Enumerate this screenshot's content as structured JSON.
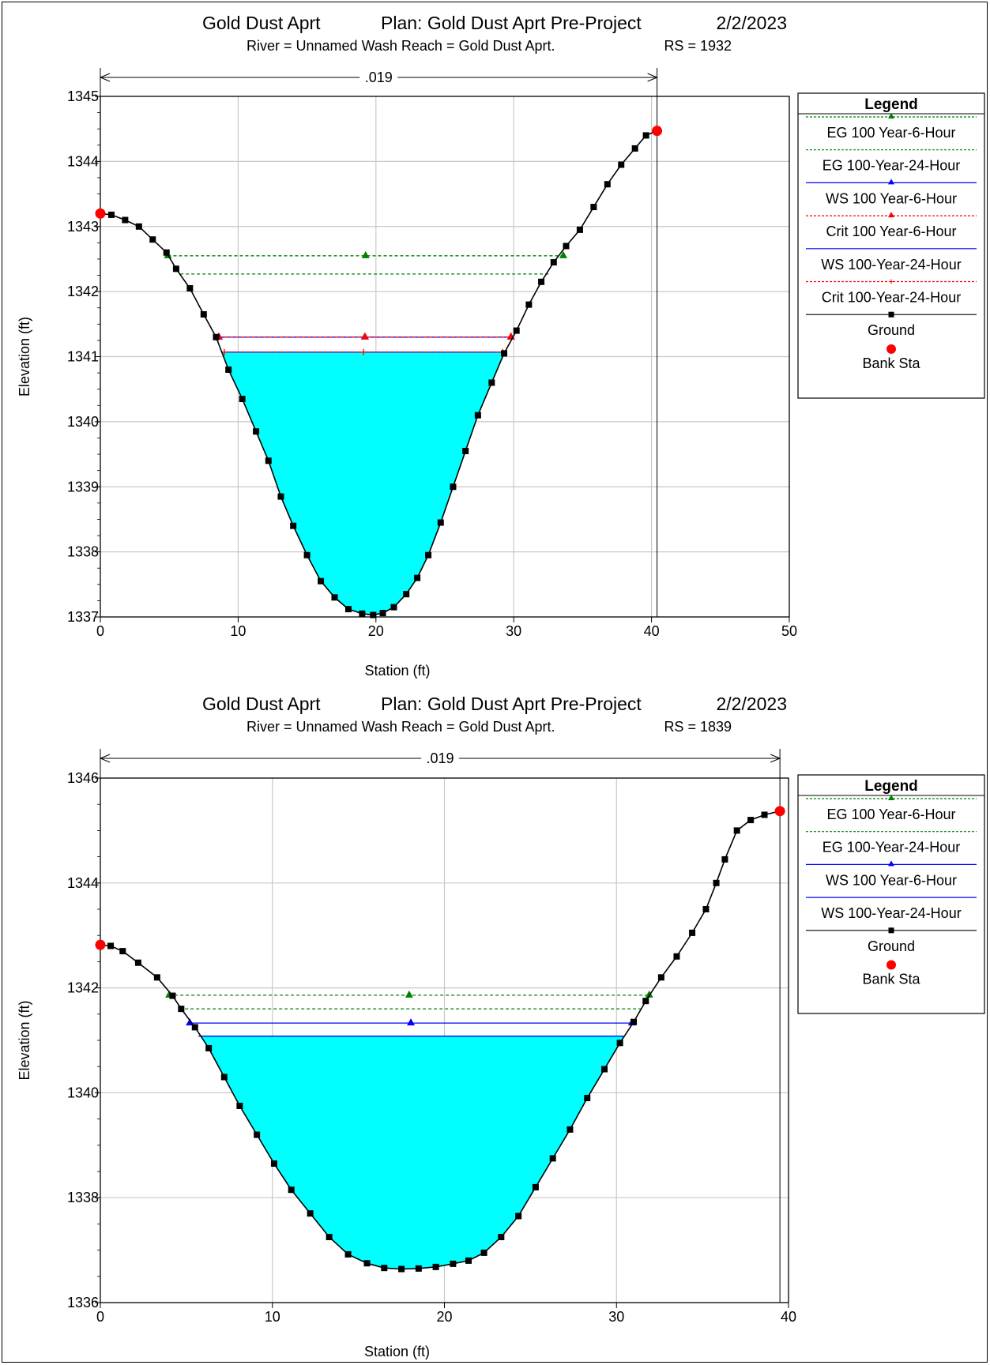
{
  "chart_data": [
    {
      "type": "line",
      "title": "Gold Dust Aprt",
      "plan": "Plan: Gold Dust Aprt Pre-Project",
      "date": "2/2/2023",
      "subtitle": "River = Unnamed Wash   Reach = Gold Dust Aprt.",
      "rs": "RS = 1932",
      "xlabel": "Station (ft)",
      "ylabel": "Elevation (ft)",
      "xlim": [
        0,
        50
      ],
      "ylim": [
        1337,
        1345
      ],
      "xticks": [
        0,
        10,
        20,
        30,
        40,
        50
      ],
      "yticks": [
        1337,
        1338,
        1339,
        1340,
        1341,
        1342,
        1343,
        1344,
        1345
      ],
      "grid": true,
      "mannings": {
        "label": ".019",
        "from": 0,
        "to": 40.4
      },
      "ground": [
        [
          0,
          1343.2
        ],
        [
          0.8,
          1343.18
        ],
        [
          1.8,
          1343.1
        ],
        [
          2.8,
          1343.0
        ],
        [
          3.8,
          1342.8
        ],
        [
          4.8,
          1342.6
        ],
        [
          5.5,
          1342.35
        ],
        [
          6.5,
          1342.05
        ],
        [
          7.5,
          1341.65
        ],
        [
          8.4,
          1341.3
        ],
        [
          9.3,
          1340.8
        ],
        [
          10.3,
          1340.35
        ],
        [
          11.3,
          1339.85
        ],
        [
          12.2,
          1339.4
        ],
        [
          13.1,
          1338.85
        ],
        [
          14.0,
          1338.4
        ],
        [
          15.0,
          1337.95
        ],
        [
          16.0,
          1337.55
        ],
        [
          17.0,
          1337.3
        ],
        [
          18.0,
          1337.12
        ],
        [
          19.0,
          1337.05
        ],
        [
          19.8,
          1337.03
        ],
        [
          20.5,
          1337.06
        ],
        [
          21.3,
          1337.15
        ],
        [
          22.2,
          1337.35
        ],
        [
          23.0,
          1337.6
        ],
        [
          23.8,
          1337.95
        ],
        [
          24.7,
          1338.45
        ],
        [
          25.6,
          1339.0
        ],
        [
          26.5,
          1339.55
        ],
        [
          27.4,
          1340.1
        ],
        [
          28.4,
          1340.6
        ],
        [
          29.3,
          1341.05
        ],
        [
          30.2,
          1341.4
        ],
        [
          31.1,
          1341.8
        ],
        [
          32.0,
          1342.15
        ],
        [
          32.9,
          1342.45
        ],
        [
          33.8,
          1342.7
        ],
        [
          34.8,
          1342.95
        ],
        [
          35.8,
          1343.3
        ],
        [
          36.8,
          1343.65
        ],
        [
          37.8,
          1343.95
        ],
        [
          38.8,
          1344.2
        ],
        [
          39.6,
          1344.4
        ],
        [
          40.4,
          1344.47
        ]
      ],
      "water_surface": 1341.07,
      "lines": [
        {
          "name": "EG 100 Year-6-Hour",
          "kind": "eg",
          "color": "#008000",
          "elev": 1342.55,
          "from": 4.9,
          "to": 33.6,
          "marker": "triangle"
        },
        {
          "name": "EG 100-Year-24-Hour",
          "kind": "eg",
          "color": "#008000",
          "elev": 1342.27,
          "from": 5.8,
          "to": 32.6,
          "marker": "none"
        },
        {
          "name": "WS 100 Year-6-Hour",
          "kind": "ws",
          "color": "#0000ff",
          "elev": 1341.3,
          "from": 8.6,
          "to": 29.8,
          "marker": "triangle"
        },
        {
          "name": "Crit 100 Year-6-Hour",
          "kind": "crit",
          "color": "#ff0000",
          "elev": 1341.3,
          "from": 8.6,
          "to": 29.8,
          "marker": "triangle"
        },
        {
          "name": "WS 100-Year-24-Hour",
          "kind": "ws",
          "color": "#0000ff",
          "elev": 1341.07,
          "from": 9.0,
          "to": 29.2,
          "marker": "none"
        },
        {
          "name": "Crit 100-Year-24-Hour",
          "kind": "crit",
          "color": "#ff0000",
          "elev": 1341.07,
          "from": 9.0,
          "to": 29.2,
          "marker": "plus"
        }
      ],
      "legend": {
        "title": "Legend",
        "placement": "right",
        "items": [
          {
            "label": "EG 100 Year-6-Hour",
            "style": "dash",
            "color": "#008000",
            "marker": "triangle"
          },
          {
            "label": "EG 100-Year-24-Hour",
            "style": "dash",
            "color": "#008000",
            "marker": "none"
          },
          {
            "label": "WS 100 Year-6-Hour",
            "style": "solid",
            "color": "#0000ff",
            "marker": "triangle"
          },
          {
            "label": "Crit 100 Year-6-Hour",
            "style": "dash",
            "color": "#ff0000",
            "marker": "triangle"
          },
          {
            "label": "WS 100-Year-24-Hour",
            "style": "solid",
            "color": "#0000ff",
            "marker": "none"
          },
          {
            "label": "Crit 100-Year-24-Hour",
            "style": "dash",
            "color": "#ff0000",
            "marker": "plus"
          },
          {
            "label": "Ground",
            "style": "solid",
            "color": "#000000",
            "marker": "square"
          },
          {
            "label": "Bank Sta",
            "style": "none",
            "color": "#ff0000",
            "marker": "circle"
          }
        ]
      },
      "bank_stations": [
        [
          0,
          1343.2
        ],
        [
          40.4,
          1344.47
        ]
      ]
    },
    {
      "type": "line",
      "title": "Gold Dust Aprt",
      "plan": "Plan: Gold Dust Aprt Pre-Project",
      "date": "2/2/2023",
      "subtitle": "River = Unnamed Wash   Reach = Gold Dust Aprt.",
      "rs": "RS = 1839",
      "xlabel": "Station (ft)",
      "ylabel": "Elevation (ft)",
      "xlim": [
        0,
        40
      ],
      "ylim": [
        1336,
        1346
      ],
      "xticks": [
        0,
        10,
        20,
        30,
        40
      ],
      "yticks": [
        1336,
        1338,
        1340,
        1342,
        1344,
        1346
      ],
      "grid": true,
      "mannings": {
        "label": ".019",
        "from": 0,
        "to": 39.5
      },
      "ground": [
        [
          0,
          1342.82
        ],
        [
          0.6,
          1342.8
        ],
        [
          1.3,
          1342.7
        ],
        [
          2.2,
          1342.48
        ],
        [
          3.3,
          1342.2
        ],
        [
          4.2,
          1341.85
        ],
        [
          4.7,
          1341.6
        ],
        [
          5.5,
          1341.25
        ],
        [
          6.3,
          1340.85
        ],
        [
          7.2,
          1340.3
        ],
        [
          8.1,
          1339.75
        ],
        [
          9.1,
          1339.2
        ],
        [
          10.1,
          1338.65
        ],
        [
          11.1,
          1338.15
        ],
        [
          12.2,
          1337.7
        ],
        [
          13.3,
          1337.25
        ],
        [
          14.4,
          1336.92
        ],
        [
          15.5,
          1336.75
        ],
        [
          16.5,
          1336.66
        ],
        [
          17.5,
          1336.64
        ],
        [
          18.5,
          1336.65
        ],
        [
          19.5,
          1336.68
        ],
        [
          20.5,
          1336.74
        ],
        [
          21.4,
          1336.8
        ],
        [
          22.3,
          1336.95
        ],
        [
          23.3,
          1337.25
        ],
        [
          24.3,
          1337.65
        ],
        [
          25.3,
          1338.2
        ],
        [
          26.3,
          1338.75
        ],
        [
          27.3,
          1339.3
        ],
        [
          28.3,
          1339.9
        ],
        [
          29.3,
          1340.45
        ],
        [
          30.2,
          1340.95
        ],
        [
          31.0,
          1341.35
        ],
        [
          31.7,
          1341.75
        ],
        [
          32.6,
          1342.2
        ],
        [
          33.5,
          1342.6
        ],
        [
          34.4,
          1343.05
        ],
        [
          35.2,
          1343.5
        ],
        [
          35.8,
          1344.0
        ],
        [
          36.3,
          1344.45
        ],
        [
          37.0,
          1345.0
        ],
        [
          37.8,
          1345.2
        ],
        [
          38.6,
          1345.3
        ],
        [
          39.5,
          1345.37
        ]
      ],
      "water_surface": 1341.08,
      "lines": [
        {
          "name": "EG 100 Year-6-Hour",
          "kind": "eg",
          "color": "#008000",
          "elev": 1341.86,
          "from": 4.0,
          "to": 31.9,
          "marker": "triangle"
        },
        {
          "name": "EG 100-Year-24-Hour",
          "kind": "eg",
          "color": "#008000",
          "elev": 1341.6,
          "from": 4.6,
          "to": 31.4,
          "marker": "none"
        },
        {
          "name": "WS 100 Year-6-Hour",
          "kind": "ws",
          "color": "#0000ff",
          "elev": 1341.33,
          "from": 5.2,
          "to": 30.9,
          "marker": "triangle"
        },
        {
          "name": "WS 100-Year-24-Hour",
          "kind": "ws",
          "color": "#0000ff",
          "elev": 1341.08,
          "from": 5.7,
          "to": 30.4,
          "marker": "none"
        }
      ],
      "legend": {
        "title": "Legend",
        "placement": "right",
        "items": [
          {
            "label": "EG 100 Year-6-Hour",
            "style": "dash",
            "color": "#008000",
            "marker": "triangle"
          },
          {
            "label": "EG 100-Year-24-Hour",
            "style": "dash",
            "color": "#008000",
            "marker": "none"
          },
          {
            "label": "WS 100 Year-6-Hour",
            "style": "solid",
            "color": "#0000ff",
            "marker": "triangle"
          },
          {
            "label": "WS 100-Year-24-Hour",
            "style": "solid",
            "color": "#0000ff",
            "marker": "none"
          },
          {
            "label": "Ground",
            "style": "solid",
            "color": "#000000",
            "marker": "square"
          },
          {
            "label": "Bank Sta",
            "style": "none",
            "color": "#ff0000",
            "marker": "circle"
          }
        ]
      },
      "bank_stations": [
        [
          0,
          1342.82
        ],
        [
          39.5,
          1345.37
        ]
      ]
    }
  ],
  "colors": {
    "water": "#00ffff",
    "grid": "#c8c8c8"
  }
}
